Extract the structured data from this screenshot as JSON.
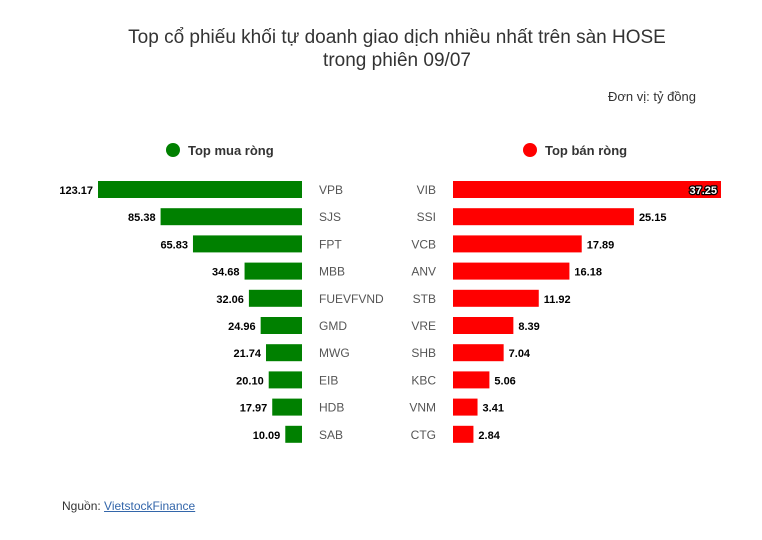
{
  "chart_data": {
    "type": "bar",
    "title_line1": "Top cổ phiếu khối tự doanh giao dịch nhiều nhất trên sàn HOSE",
    "title_line2": "trong phiên 09/07",
    "unit": "Đơn vị: tỷ đồng",
    "series": [
      {
        "name": "Top mua ròng",
        "color": "#008000",
        "categories": [
          "VPB",
          "SJS",
          "FPT",
          "MBB",
          "FUEVFVND",
          "GMD",
          "MWG",
          "EIB",
          "HDB",
          "SAB"
        ],
        "values": [
          123.17,
          85.38,
          65.83,
          34.68,
          32.06,
          24.96,
          21.74,
          20.1,
          17.97,
          10.09
        ],
        "value_labels": [
          "123.17",
          "85.38",
          "65.83",
          "34.68",
          "32.06",
          "24.96",
          "21.74",
          "20.10",
          "17.97",
          "10.09"
        ]
      },
      {
        "name": "Top bán ròng",
        "color": "#ff0000",
        "categories": [
          "VIB",
          "SSI",
          "VCB",
          "ANV",
          "STB",
          "VRE",
          "SHB",
          "KBC",
          "VNM",
          "CTG"
        ],
        "values": [
          37.25,
          25.15,
          17.89,
          16.18,
          11.92,
          8.39,
          7.04,
          5.06,
          3.41,
          2.84
        ],
        "value_labels": [
          "37.25",
          "25.15",
          "17.89",
          "16.18",
          "11.92",
          "8.39",
          "7.04",
          "5.06",
          "3.41",
          "2.84"
        ]
      }
    ],
    "grid": false,
    "legend_placement": "top"
  },
  "source": {
    "label": "Nguồn: ",
    "link_text": "VietstockFinance"
  }
}
